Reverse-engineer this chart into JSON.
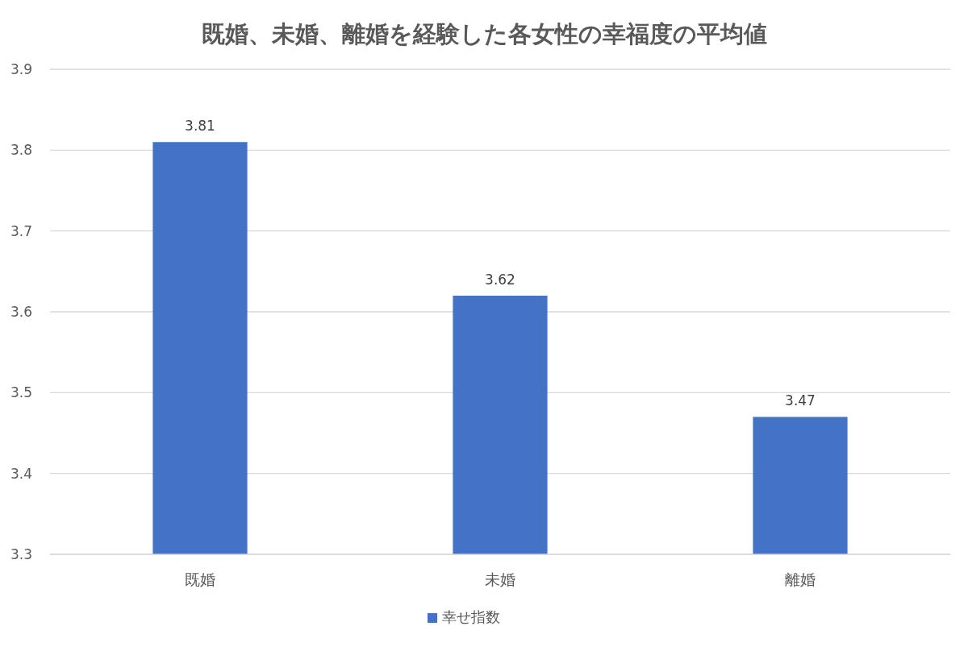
{
  "chart_data": {
    "type": "bar",
    "title": "既婚、未婚、離婚を経験した各女性の幸福度の平均値",
    "categories": [
      "既婚",
      "未婚",
      "離婚"
    ],
    "series": [
      {
        "name": "幸せ指数",
        "color": "#4472c4",
        "values": [
          3.81,
          3.62,
          3.47
        ]
      }
    ],
    "ylim": [
      3.3,
      3.9
    ],
    "yticks": [
      3.3,
      3.4,
      3.5,
      3.6,
      3.7,
      3.8,
      3.9
    ],
    "grid": "y",
    "legend": "bottom",
    "data_labels": true
  }
}
